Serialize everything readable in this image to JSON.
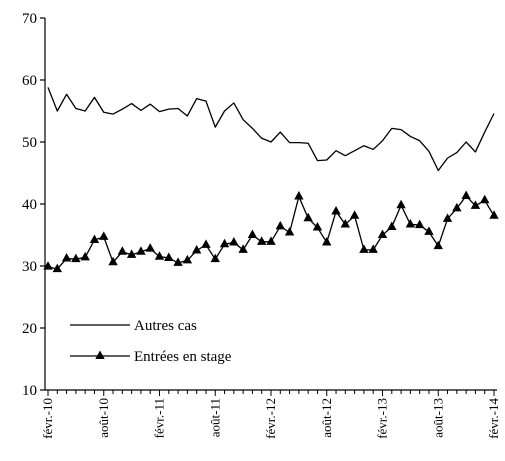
{
  "chart_data": {
    "type": "line",
    "title": "",
    "xlabel": "",
    "ylabel": "",
    "ylim": [
      10,
      70
    ],
    "yticks": [
      10,
      20,
      30,
      40,
      50,
      60,
      70
    ],
    "x_tick_labels": [
      "févr.-10",
      "août-10",
      "févr.-11",
      "août-11",
      "févr.-12",
      "août-12",
      "févr.-13",
      "août-13",
      "févr.-14"
    ],
    "x": [
      "févr.-10",
      "mars-10",
      "avr.-10",
      "mai-10",
      "juin-10",
      "juil.-10",
      "août-10",
      "sept.-10",
      "oct.-10",
      "nov.-10",
      "déc.-10",
      "janv.-11",
      "févr.-11",
      "mars-11",
      "avr.-11",
      "mai-11",
      "juin-11",
      "juil.-11",
      "août-11",
      "sept.-11",
      "oct.-11",
      "nov.-11",
      "déc.-11",
      "janv.-12",
      "févr.-12",
      "mars-12",
      "avr.-12",
      "mai-12",
      "juin-12",
      "juil.-12",
      "août-12",
      "sept.-12",
      "oct.-12",
      "nov.-12",
      "déc.-12",
      "janv.-13",
      "févr.-13",
      "mars-13",
      "avr.-13",
      "mai-13",
      "juin-13",
      "juil.-13",
      "août-13",
      "sept.-13",
      "oct.-13",
      "nov.-13",
      "déc.-13",
      "janv.-14",
      "févr.-14"
    ],
    "grid": false,
    "legend_position": "lower-left",
    "series": [
      {
        "name": "Autres cas",
        "marker": "none",
        "color": "#000000",
        "values": [
          58.8,
          55.0,
          57.7,
          55.4,
          55.0,
          57.2,
          54.8,
          54.5,
          55.3,
          56.2,
          55.1,
          56.1,
          54.9,
          55.3,
          55.4,
          54.2,
          57.0,
          56.6,
          52.4,
          55.0,
          56.3,
          53.6,
          52.2,
          50.6,
          50.0,
          51.6,
          49.9,
          49.9,
          49.8,
          47.0,
          47.1,
          48.6,
          47.8,
          48.6,
          49.4,
          48.8,
          50.2,
          52.2,
          52.0,
          50.9,
          50.2,
          48.5,
          45.4,
          47.4,
          48.3,
          50.0,
          48.4,
          51.6,
          54.6
        ]
      },
      {
        "name": "Entrées en stage",
        "marker": "triangle",
        "color": "#000000",
        "values": [
          29.9,
          29.5,
          31.2,
          31.1,
          31.4,
          34.2,
          34.7,
          30.6,
          32.3,
          31.8,
          32.3,
          32.8,
          31.5,
          31.3,
          30.5,
          30.9,
          32.5,
          33.4,
          31.1,
          33.5,
          33.8,
          32.6,
          35.0,
          33.9,
          33.9,
          36.4,
          35.4,
          41.2,
          37.7,
          36.2,
          33.8,
          38.8,
          36.7,
          38.1,
          32.6,
          32.6,
          35.0,
          36.3,
          39.8,
          36.7,
          36.6,
          35.5,
          33.2,
          37.6,
          39.3,
          41.3,
          39.7,
          40.6,
          38.1
        ]
      }
    ]
  },
  "colors": {
    "line": "#000000",
    "background": "#ffffff"
  }
}
